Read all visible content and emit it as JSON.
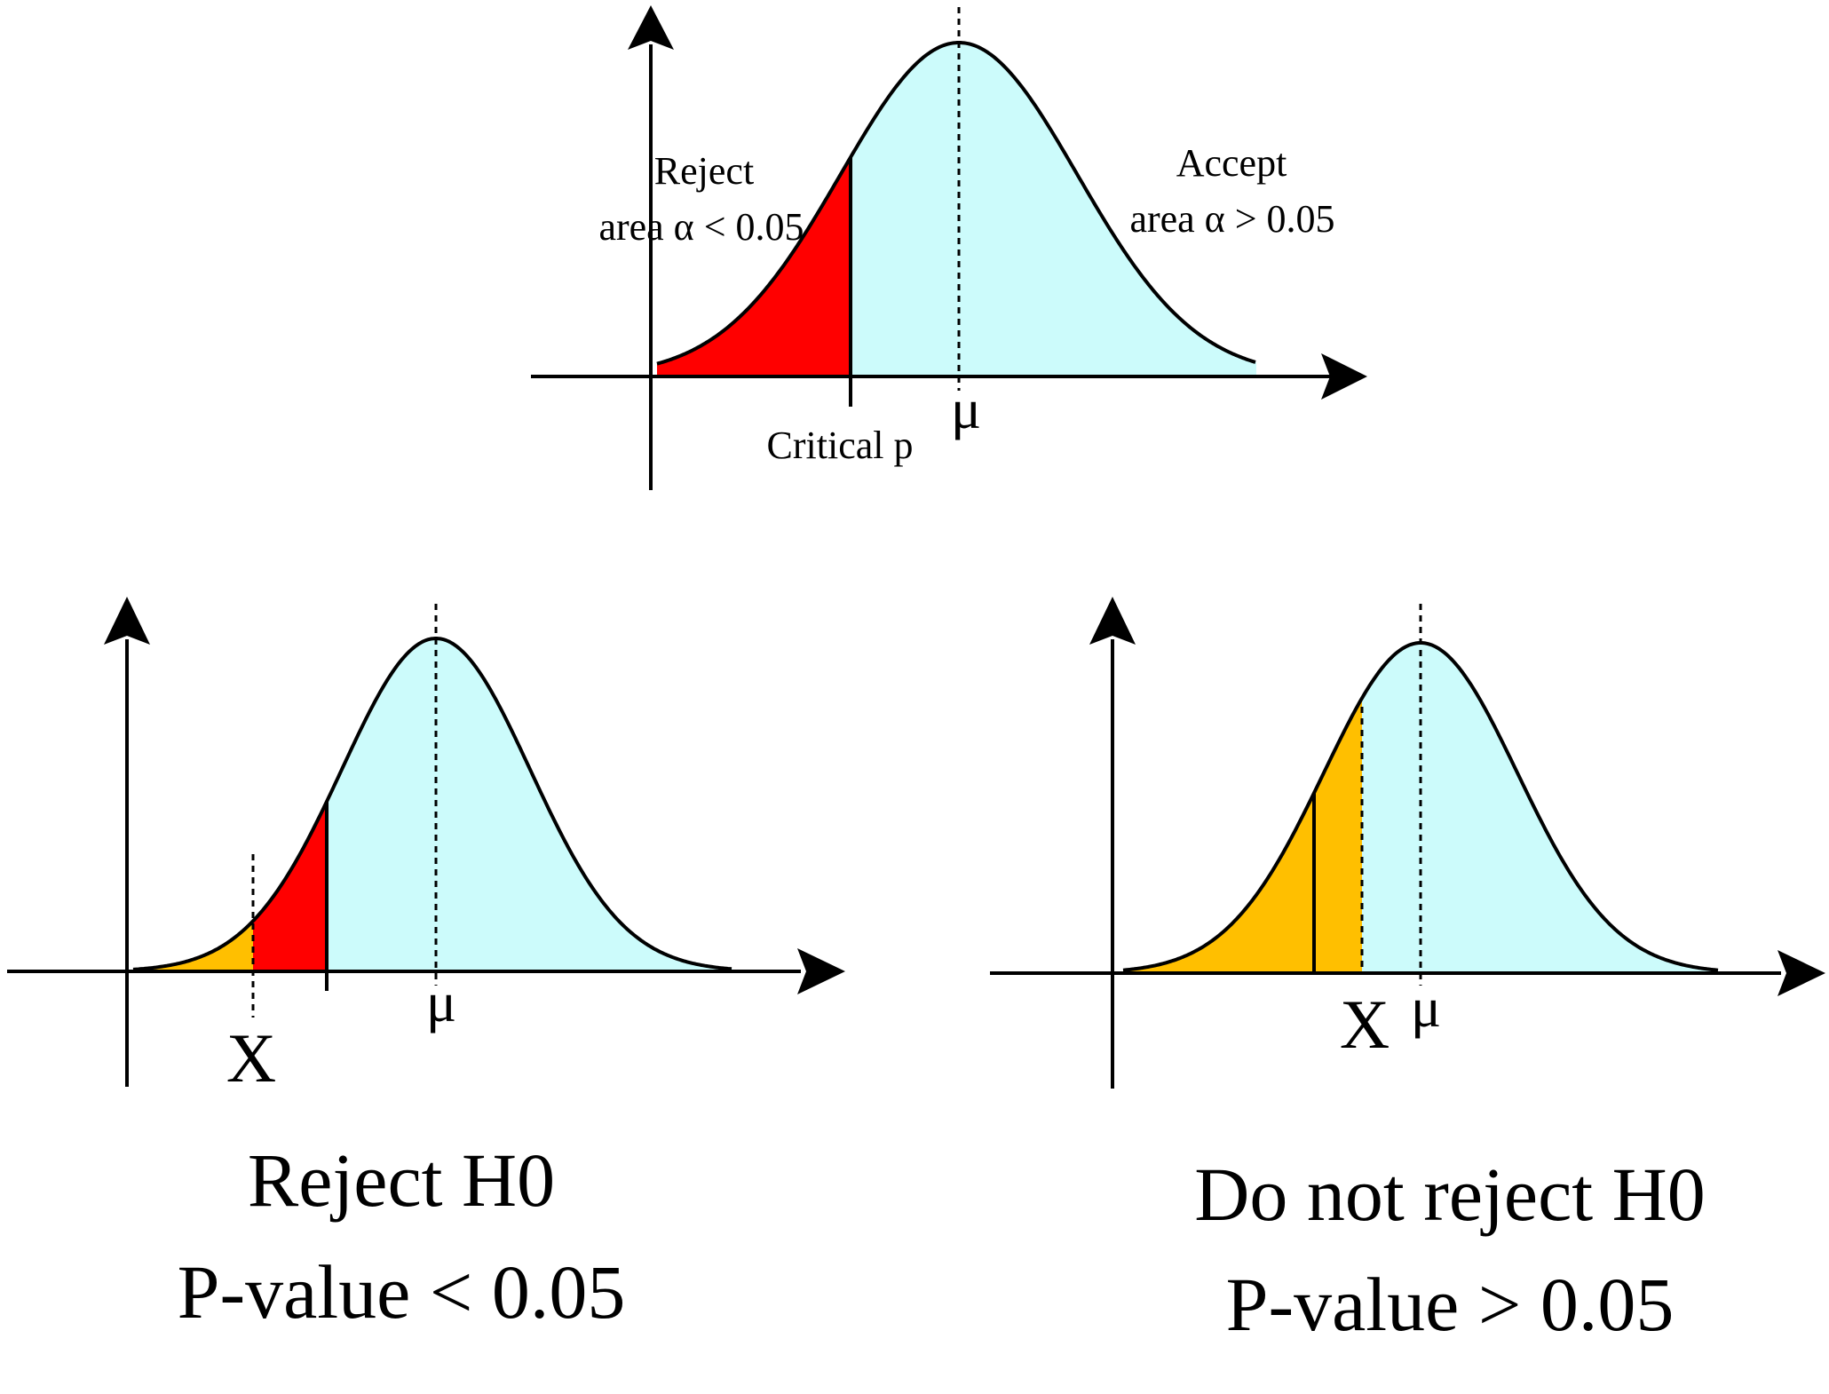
{
  "colors": {
    "curve": "#000000",
    "accept_fill": "#ccfbfb",
    "reject_fill": "#ff0000",
    "pvalue_fill": "#ffbf00",
    "background": "#ffffff"
  },
  "top_panel": {
    "reject_label_line1": "Reject",
    "reject_label_line2": "area α < 0.05",
    "accept_label_line1": "Accept",
    "accept_label_line2": "area α > 0.05",
    "critical_label": "Critical p",
    "mean_label": "μ"
  },
  "left_panel": {
    "mean_label": "μ",
    "x_label": "X",
    "caption_line1": "Reject H0",
    "caption_line2": "P-value < 0.05"
  },
  "right_panel": {
    "mean_label": "μ",
    "x_label": "X",
    "caption_line1": "Do not reject H0",
    "caption_line2": "P-value > 0.05"
  }
}
